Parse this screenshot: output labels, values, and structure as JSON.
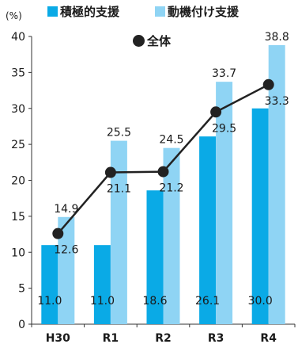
{
  "chart_data": {
    "type": "bar",
    "y_unit": "(%)",
    "categories": [
      "H30",
      "R1",
      "R2",
      "R3",
      "R4"
    ],
    "series": [
      {
        "name": "積極的支援",
        "kind": "bar",
        "color": "#0aaae6",
        "values": [
          11.0,
          11.0,
          18.6,
          26.1,
          30.0
        ]
      },
      {
        "name": "動機付け支援",
        "kind": "bar",
        "color": "#8fd4f4",
        "values": [
          14.9,
          25.5,
          24.5,
          33.7,
          38.8
        ]
      },
      {
        "name": "全体",
        "kind": "line",
        "color": "#222222",
        "values": [
          12.6,
          21.1,
          21.2,
          29.5,
          33.3
        ]
      }
    ],
    "yticks": [
      0,
      5,
      10,
      15,
      20,
      25,
      30,
      35,
      40
    ],
    "ylim": [
      0,
      40
    ],
    "grid": false
  }
}
